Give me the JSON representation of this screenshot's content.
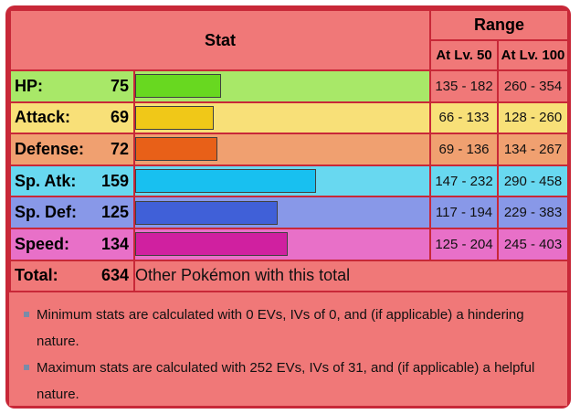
{
  "header": {
    "stat_label": "Stat",
    "range_label": "Range",
    "lv50_label": "At Lv. 50",
    "lv100_label": "At Lv. 100"
  },
  "stats": [
    {
      "name": "HP:",
      "value": "75",
      "base": 75,
      "lv50": "135 - 182",
      "lv100": "260 - 354",
      "row_color": "#a8e868",
      "bar_color": "#68d820",
      "range_color": "#f07878"
    },
    {
      "name": "Attack:",
      "value": "69",
      "base": 69,
      "lv50": "66 - 133",
      "lv100": "128 - 260",
      "row_color": "#f8e078",
      "bar_color": "#f0c818",
      "range_color": "#f8e078"
    },
    {
      "name": "Defense:",
      "value": "72",
      "base": 72,
      "lv50": "69 - 136",
      "lv100": "134 - 267",
      "row_color": "#f0a070",
      "bar_color": "#e86018",
      "range_color": "#f0a070"
    },
    {
      "name": "Sp. Atk:",
      "value": "159",
      "base": 159,
      "lv50": "147 - 232",
      "lv100": "290 - 458",
      "row_color": "#68d8f0",
      "bar_color": "#18c0f0",
      "range_color": "#68d8f0"
    },
    {
      "name": "Sp. Def:",
      "value": "125",
      "base": 125,
      "lv50": "117 - 194",
      "lv100": "229 - 383",
      "row_color": "#8898e8",
      "bar_color": "#4060d8",
      "range_color": "#8898e8"
    },
    {
      "name": "Speed:",
      "value": "134",
      "base": 134,
      "lv50": "125 - 204",
      "lv100": "245 - 403",
      "row_color": "#e870c8",
      "bar_color": "#d020a0",
      "range_color": "#e870c8"
    }
  ],
  "total": {
    "label": "Total:",
    "value": "634",
    "link_text": "Other Pokémon with this total"
  },
  "notes": [
    "Minimum stats are calculated with 0 EVs, IVs of 0, and (if applicable) a hindering nature.",
    "Maximum stats are calculated with 252 EVs, IVs of 31, and (if applicable) a helpful nature."
  ]
}
